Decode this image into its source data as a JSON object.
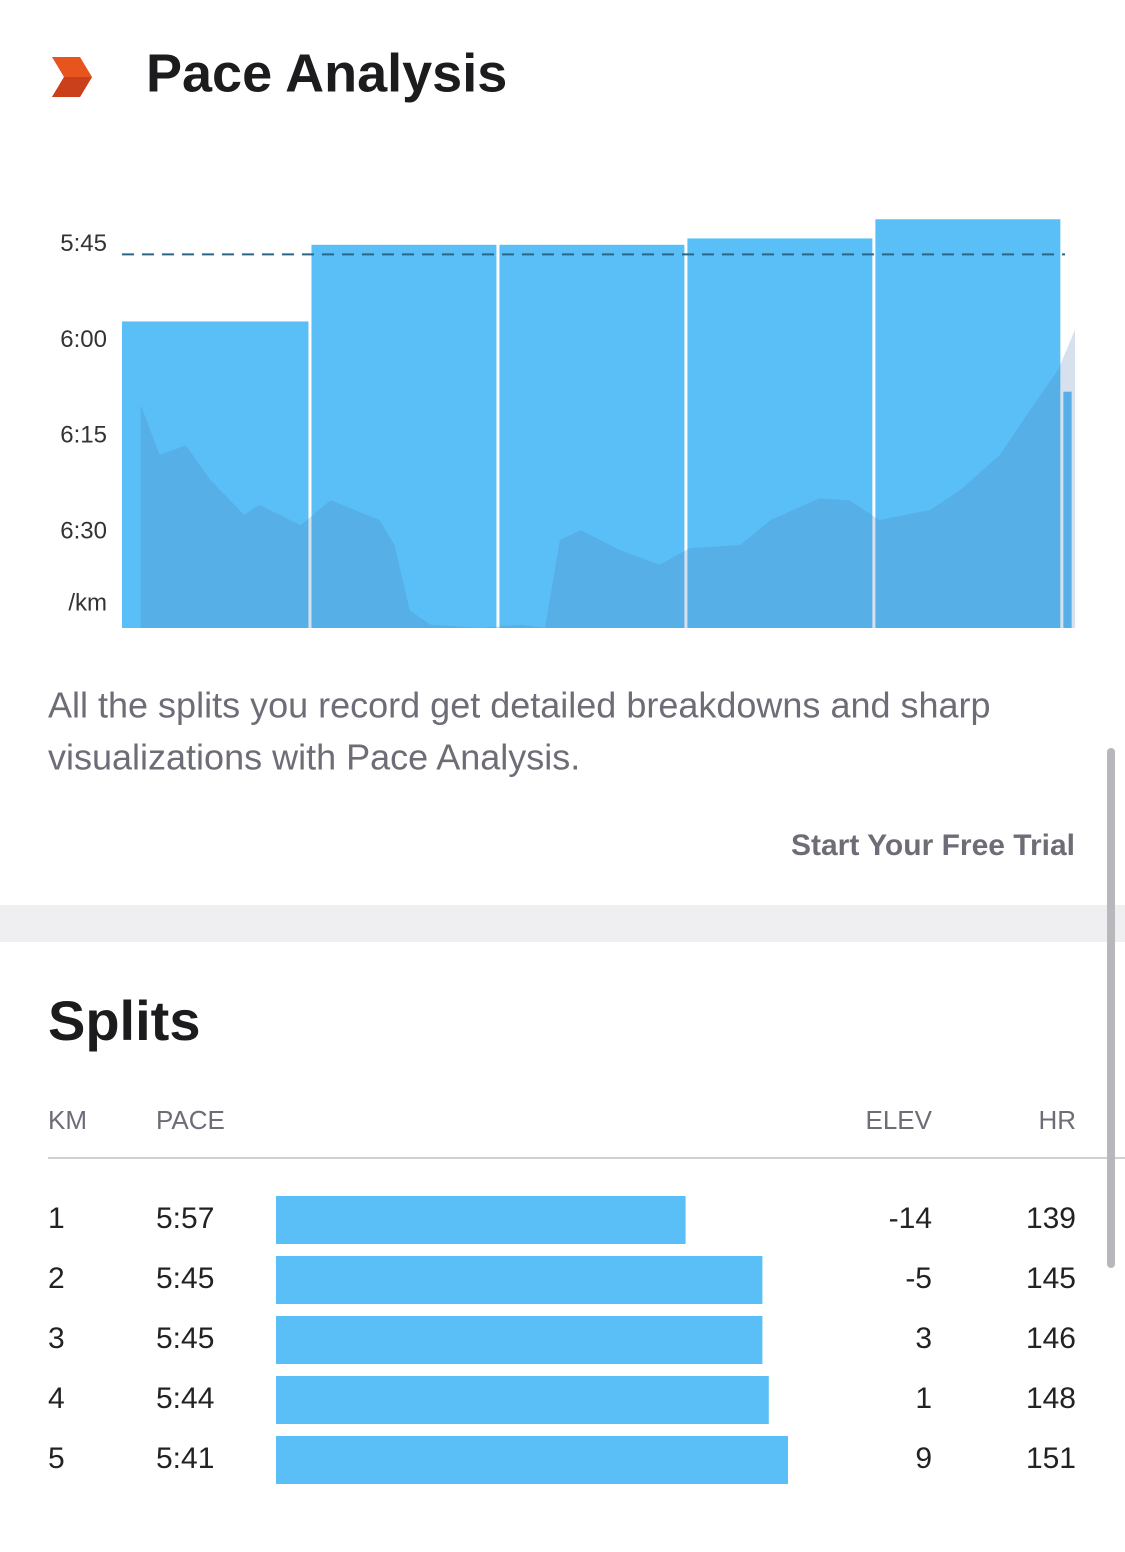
{
  "header": {
    "title": "Pace Analysis"
  },
  "chart_data": {
    "type": "bar",
    "values": [
      357,
      345,
      345,
      344,
      341,
      368
    ],
    "distances": [
      1,
      1,
      1,
      1,
      1,
      0.06
    ],
    "color": "#5bbff7",
    "average": 346.5,
    "ylim": [
      405,
      330
    ],
    "yticks": [
      {
        "value": 345,
        "label": "5:45"
      },
      {
        "value": 360,
        "label": "6:00"
      },
      {
        "value": 375,
        "label": "6:15"
      },
      {
        "value": 390,
        "label": "6:30"
      }
    ],
    "y_label": "/km",
    "xlim": [
      0,
      5.07
    ],
    "profile": {
      "x": [
        0.1,
        0.2,
        0.34,
        0.47,
        0.65,
        0.73,
        0.95,
        1.11,
        1.37,
        1.45,
        1.53,
        1.64,
        1.9,
        2.12,
        2.25,
        2.33,
        2.44,
        2.65,
        2.86,
        3.02,
        3.29,
        3.45,
        3.71,
        3.87,
        4.03,
        4.3,
        4.46,
        4.67,
        4.83,
        4.98,
        5.07
      ],
      "values": [
        370.1,
        377.9,
        376.4,
        381.8,
        387.3,
        385.7,
        388.9,
        385,
        388.1,
        392,
        402.2,
        404.5,
        405,
        404.5,
        405,
        391.2,
        389.7,
        392.8,
        395.1,
        392.5,
        392,
        388.1,
        384.7,
        385,
        388.1,
        386.5,
        383.4,
        377.9,
        370.9,
        364.6,
        358.3
      ]
    }
  },
  "description": "All the splits you record get detailed breakdowns and sharp visualizations with Pace Analysis.",
  "description_lines": [
    "All the splits you record get detailed breakdowns and sharp",
    "visualizations with Pace Analysis."
  ],
  "cta": "Start Your Free Trial",
  "splits": {
    "title": "Splits",
    "columns": [
      "KM",
      "PACE",
      "ELEV",
      "HR"
    ],
    "rows": [
      {
        "km": 1,
        "pace": {
          "value": 357,
          "label": "5:57"
        },
        "elev": -14,
        "hr": 139
      },
      {
        "km": 2,
        "pace": {
          "value": 345,
          "label": "5:45"
        },
        "elev": -5,
        "hr": 145
      },
      {
        "km": 3,
        "pace": {
          "value": 345,
          "label": "5:45"
        },
        "elev": 3,
        "hr": 146
      },
      {
        "km": 4,
        "pace": {
          "value": 344,
          "label": "5:44"
        },
        "elev": 1,
        "hr": 148
      },
      {
        "km": 5,
        "pace": {
          "value": 341,
          "label": "5:41"
        },
        "elev": 9,
        "hr": 151
      }
    ]
  }
}
